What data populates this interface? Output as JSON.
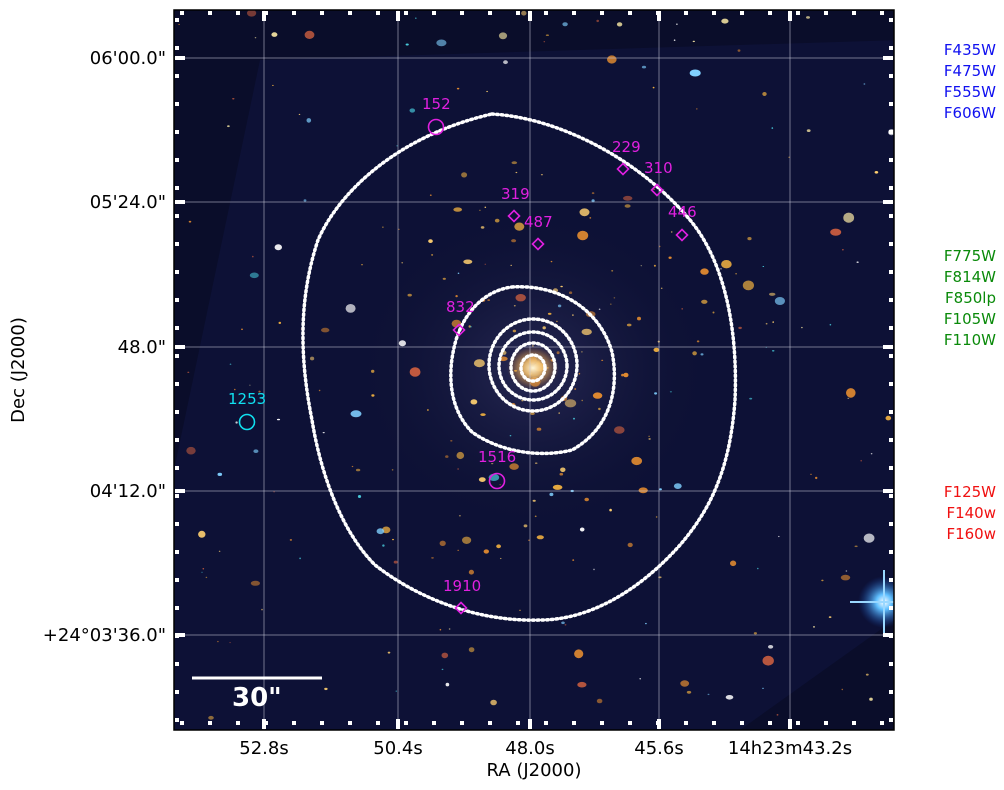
{
  "axes": {
    "xlabel": "RA (J2000)",
    "ylabel": "Dec (J2000)",
    "xticks": [
      "52.8s",
      "50.4s",
      "48.0s",
      "45.6s",
      "14h23m43.2s"
    ],
    "yticks": [
      "06'00.0\"",
      "05'24.0\"",
      "48.0\"",
      "04'12.0\"",
      "+24°03'36.0\""
    ]
  },
  "scalebar": {
    "label": "30\""
  },
  "colors": {
    "magenta": "#e020e0",
    "cyan": "#10e0f0",
    "blue_filters": "#1010f0",
    "green_filters": "#0a8a0a",
    "red_filters": "#f01010",
    "contour": "#ffffff",
    "sky": "#0a0d2a"
  },
  "objects": [
    {
      "id": "152",
      "label": "152",
      "marker": "circle",
      "color": "magenta"
    },
    {
      "id": "229",
      "label": "229",
      "marker": "diamond",
      "color": "magenta"
    },
    {
      "id": "310",
      "label": "310",
      "marker": "diamond",
      "color": "magenta"
    },
    {
      "id": "319",
      "label": "319",
      "marker": "diamond",
      "color": "magenta"
    },
    {
      "id": "487",
      "label": "487",
      "marker": "diamond",
      "color": "magenta"
    },
    {
      "id": "446",
      "label": "446",
      "marker": "diamond",
      "color": "magenta"
    },
    {
      "id": "832",
      "label": "832",
      "marker": "diamond",
      "color": "magenta"
    },
    {
      "id": "1253",
      "label": "1253",
      "marker": "circle",
      "color": "cyan"
    },
    {
      "id": "1516",
      "label": "1516",
      "marker": "circle",
      "color": "magenta"
    },
    {
      "id": "1910",
      "label": "1910",
      "marker": "diamond",
      "color": "magenta"
    }
  ],
  "filters": {
    "blue": [
      "F435W",
      "F475W",
      "F555W",
      "F606W"
    ],
    "green": [
      "F775W",
      "F814W",
      "F850lp",
      "F105W",
      "F110W"
    ],
    "red": [
      "F125W",
      "F140w",
      "F160w"
    ]
  }
}
